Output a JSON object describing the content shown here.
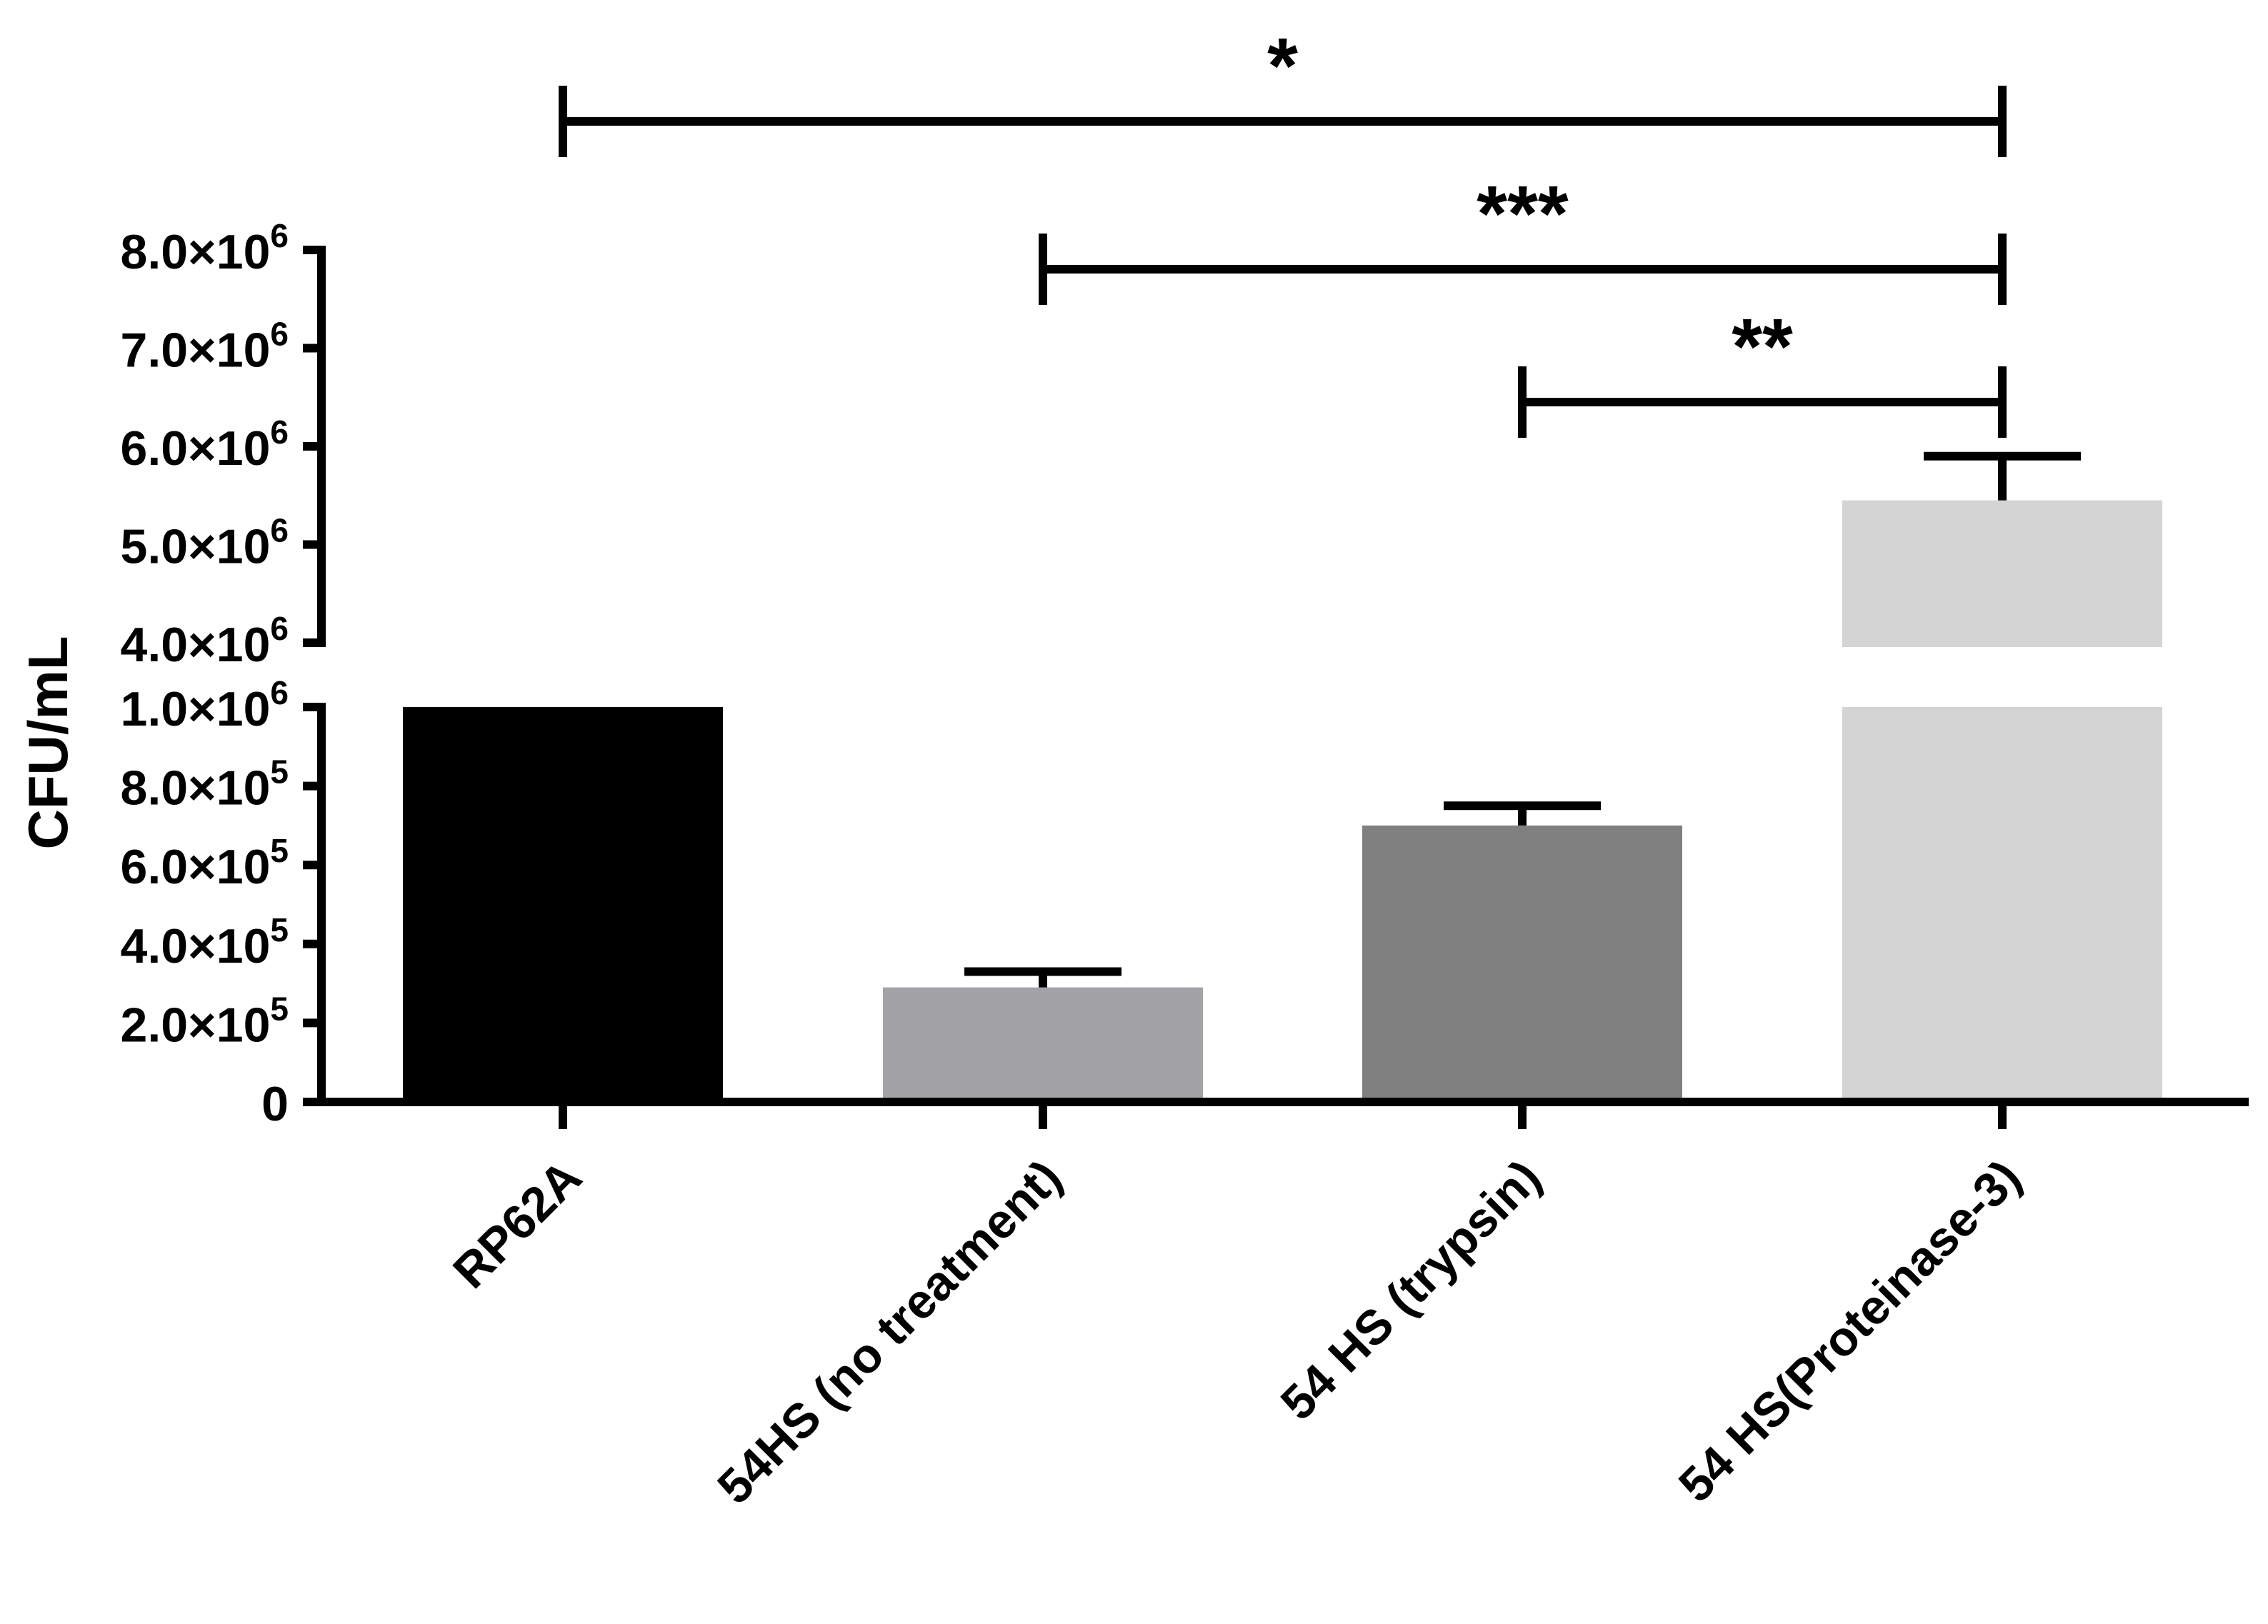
{
  "chart_data": {
    "type": "bar",
    "ylabel": "CFU/mL",
    "xlabel": "",
    "title": "",
    "categories": [
      "RP62A",
      "54HS (no treatment)",
      "54 HS (trypsin)",
      "54 HS(Proteinase-3)"
    ],
    "values": [
      1000000,
      290000,
      700000,
      5450000
    ],
    "errors": [
      0,
      40000,
      50000,
      450000
    ],
    "colors": [
      "#000000",
      "#a3a3a7",
      "#808080",
      "#d4d4d4"
    ],
    "axis_break": {
      "lower_range": [
        0,
        1000000
      ],
      "upper_range": [
        4000000,
        8000000
      ]
    },
    "lower_ticks": [
      {
        "value": 0,
        "base": "0",
        "exp": ""
      },
      {
        "value": 200000,
        "base": "2.0×10",
        "exp": "5"
      },
      {
        "value": 400000,
        "base": "4.0×10",
        "exp": "5"
      },
      {
        "value": 600000,
        "base": "6.0×10",
        "exp": "5"
      },
      {
        "value": 800000,
        "base": "8.0×10",
        "exp": "5"
      },
      {
        "value": 1000000,
        "base": "1.0×10",
        "exp": "6"
      }
    ],
    "upper_ticks": [
      {
        "value": 4000000,
        "base": "4.0×10",
        "exp": "6"
      },
      {
        "value": 5000000,
        "base": "5.0×10",
        "exp": "6"
      },
      {
        "value": 6000000,
        "base": "6.0×10",
        "exp": "6"
      },
      {
        "value": 7000000,
        "base": "7.0×10",
        "exp": "6"
      },
      {
        "value": 8000000,
        "base": "8.0×10",
        "exp": "6"
      }
    ],
    "significance": [
      {
        "from": 2,
        "to": 3,
        "label": "**"
      },
      {
        "from": 1,
        "to": 3,
        "label": "***"
      },
      {
        "from": 0,
        "to": 3,
        "label": "*"
      }
    ],
    "grid": false,
    "legend": "none"
  }
}
